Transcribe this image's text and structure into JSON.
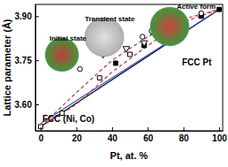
{
  "chart_data": {
    "type": "line",
    "x_label": "Pt, at. %",
    "y_label": "Lattice parameter (Å)",
    "xlim": [
      -3,
      102
    ],
    "ylim": [
      3.51,
      3.94
    ],
    "xticks": [
      0,
      20,
      40,
      60,
      80,
      100
    ],
    "yticks": [
      {
        "value": 3.6,
        "label": "3.60"
      },
      {
        "value": 3.75,
        "label": "3.75"
      },
      {
        "value": 3.9,
        "label": "3.90"
      }
    ],
    "grid": false,
    "annotations": [
      "Initial state",
      "Transient state",
      "Active form",
      "FCC Pt",
      "FCC (Ni, Co)"
    ],
    "series": [
      {
        "type": "line",
        "color": "#000000",
        "line_style": "solid",
        "x": [
          0,
          100
        ],
        "values": [
          3.524,
          3.923
        ]
      },
      {
        "type": "line",
        "color": "#3050d0",
        "line_style": "solid",
        "x": [
          0,
          100
        ],
        "values": [
          3.535,
          3.923
        ]
      },
      {
        "type": "line",
        "color": "#d03030",
        "line_style": "dashed",
        "x": [
          0,
          20,
          40,
          60,
          80,
          100
        ],
        "values": [
          3.524,
          3.64,
          3.75,
          3.83,
          3.89,
          3.923
        ]
      },
      {
        "type": "line",
        "color": "#d03030",
        "line_style": "dashed",
        "x": [
          0,
          20,
          40,
          60,
          80,
          100
        ],
        "values": [
          3.524,
          3.6,
          3.71,
          3.8,
          3.88,
          3.923
        ]
      },
      {
        "type": "scatter",
        "color": "#000000",
        "marker": "square-filled",
        "x": [
          42,
          58,
          71,
          80,
          90,
          100
        ],
        "values": [
          3.74,
          3.8,
          3.84,
          3.87,
          3.9,
          3.923
        ]
      },
      {
        "type": "scatter",
        "color": "#000000",
        "marker": "square-open",
        "x": [
          0,
          12,
          33,
          50
        ],
        "values": [
          3.524,
          3.57,
          3.69,
          3.77
        ]
      },
      {
        "type": "scatter",
        "color": "#000000",
        "marker": "circle-open",
        "x": [
          22,
          57,
          70,
          80,
          90
        ],
        "values": [
          3.72,
          3.83,
          3.87,
          3.89,
          3.91
        ]
      },
      {
        "type": "scatter",
        "color": "#000000",
        "marker": "triangle-down-open",
        "x": [
          35,
          48,
          58,
          68
        ],
        "values": [
          3.77,
          3.79,
          3.81,
          3.84
        ]
      },
      {
        "type": "scatter",
        "color": "#000000",
        "marker": "diamond-open",
        "x": [
          62,
          80
        ],
        "values": [
          3.85,
          3.88
        ]
      }
    ]
  }
}
